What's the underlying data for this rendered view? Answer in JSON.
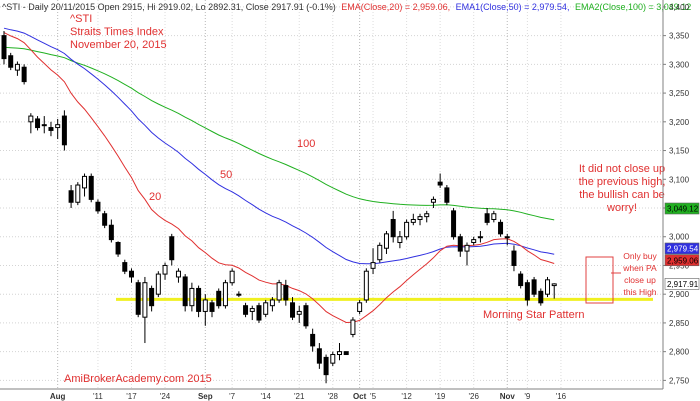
{
  "header": {
    "prefix": "^STI - Daily 20/11/2015 Open 2915, Hi 2919.02, Lo 2892.31, Close 2917.91 (-0.1%)",
    "ema20": "EMA(Close,20) = 2,959.06,",
    "ema50": "EMA1(Close,50) = 2,979.54,",
    "ema100": "EMA2(Close,100) = 3,049.12"
  },
  "title_lines": [
    "^STI",
    "Straits Times Index",
    "November 20, 2015"
  ],
  "watermark": "AmiBrokerAcademy.com 2015",
  "colors": {
    "candle_up": "#ffffff",
    "candle_down": "#000000",
    "ema20": "#e03030",
    "ema50": "#3030e0",
    "ema100": "#20b020",
    "support": "#f0f020",
    "annotation": "#e03030",
    "pattern_box": "#e04040"
  },
  "annotations": {
    "label_20": "20",
    "label_50": "50",
    "label_100": "100",
    "note_lines": [
      "It did not close up",
      "the previous high,",
      "the bullish can be",
      "worry!"
    ],
    "buy_lines": [
      "Only buy",
      "when PA",
      "close up",
      "this High"
    ],
    "pattern": "Morning Star Pattern"
  },
  "price_labels": {
    "ema100": "3,049.12",
    "ema50": "2,979.54",
    "ema20": "2,959.06",
    "close": "2,917.91"
  },
  "chart_data": {
    "type": "candlestick",
    "ylim": [
      2735,
      3412
    ],
    "yticks": [
      2750,
      2800,
      2850,
      2900,
      2950,
      3000,
      3050,
      3100,
      3150,
      3200,
      3250,
      3300,
      3350,
      3400
    ],
    "ytick_labels": [
      "2,750",
      "2,800",
      "2,850",
      "2,900",
      "2,950",
      "3,000",
      "3,050",
      "3,100",
      "3,150",
      "3,200",
      "3,250",
      "3,300",
      "3,350",
      "3,400"
    ],
    "xlabels": [
      {
        "label": "Aug",
        "index": 8,
        "bold": true
      },
      {
        "label": "'11",
        "index": 14,
        "bold": false
      },
      {
        "label": "'17",
        "index": 19,
        "bold": false
      },
      {
        "label": "'24",
        "index": 24,
        "bold": false
      },
      {
        "label": "Sep",
        "index": 30,
        "bold": true
      },
      {
        "label": "'7",
        "index": 34,
        "bold": false
      },
      {
        "label": "'14",
        "index": 39,
        "bold": false
      },
      {
        "label": "'21",
        "index": 44,
        "bold": false
      },
      {
        "label": "'28",
        "index": 49,
        "bold": false
      },
      {
        "label": "Oct",
        "index": 53,
        "bold": true
      },
      {
        "label": "'5",
        "index": 55,
        "bold": false
      },
      {
        "label": "'12",
        "index": 60,
        "bold": false
      },
      {
        "label": "'19",
        "index": 65,
        "bold": false
      },
      {
        "label": "'26",
        "index": 70,
        "bold": false
      },
      {
        "label": "Nov",
        "index": 75,
        "bold": true
      },
      {
        "label": "'9",
        "index": 78,
        "bold": false
      },
      {
        "label": "'16",
        "index": 83,
        "bold": false
      }
    ],
    "candles": [
      {
        "o": 3350,
        "h": 3358,
        "l": 3300,
        "c": 3310
      },
      {
        "o": 3315,
        "h": 3320,
        "l": 3290,
        "c": 3295
      },
      {
        "o": 3290,
        "h": 3305,
        "l": 3280,
        "c": 3300
      },
      {
        "o": 3295,
        "h": 3300,
        "l": 3265,
        "c": 3270
      },
      {
        "o": 3200,
        "h": 3215,
        "l": 3180,
        "c": 3210
      },
      {
        "o": 3205,
        "h": 3210,
        "l": 3185,
        "c": 3190
      },
      {
        "o": 3195,
        "h": 3210,
        "l": 3180,
        "c": 3195
      },
      {
        "o": 3190,
        "h": 3200,
        "l": 3175,
        "c": 3185
      },
      {
        "o": 3190,
        "h": 3205,
        "l": 3170,
        "c": 3195
      },
      {
        "o": 3210,
        "h": 3220,
        "l": 3150,
        "c": 3160
      },
      {
        "o": 3080,
        "h": 3090,
        "l": 3050,
        "c": 3060
      },
      {
        "o": 3060,
        "h": 3095,
        "l": 3055,
        "c": 3090
      },
      {
        "o": 3085,
        "h": 3110,
        "l": 3070,
        "c": 3105
      },
      {
        "o": 3105,
        "h": 3110,
        "l": 3060,
        "c": 3065
      },
      {
        "o": 3060,
        "h": 3065,
        "l": 3040,
        "c": 3045
      },
      {
        "o": 3040,
        "h": 3045,
        "l": 3015,
        "c": 3020
      },
      {
        "o": 3020,
        "h": 3030,
        "l": 2990,
        "c": 2995
      },
      {
        "o": 2990,
        "h": 2992,
        "l": 2965,
        "c": 2970
      },
      {
        "o": 2955,
        "h": 2960,
        "l": 2935,
        "c": 2940
      },
      {
        "o": 2940,
        "h": 2945,
        "l": 2920,
        "c": 2930
      },
      {
        "o": 2920,
        "h": 2925,
        "l": 2860,
        "c": 2865
      },
      {
        "o": 2860,
        "h": 2930,
        "l": 2815,
        "c": 2920
      },
      {
        "o": 2910,
        "h": 2915,
        "l": 2870,
        "c": 2880
      },
      {
        "o": 2900,
        "h": 2940,
        "l": 2895,
        "c": 2935
      },
      {
        "o": 2935,
        "h": 2955,
        "l": 2925,
        "c": 2950
      },
      {
        "o": 3000,
        "h": 3005,
        "l": 2950,
        "c": 2960
      },
      {
        "o": 2930,
        "h": 2945,
        "l": 2920,
        "c": 2940
      },
      {
        "o": 2930,
        "h": 2935,
        "l": 2870,
        "c": 2880
      },
      {
        "o": 2880,
        "h": 2920,
        "l": 2870,
        "c": 2910
      },
      {
        "o": 2910,
        "h": 2915,
        "l": 2860,
        "c": 2870
      },
      {
        "o": 2870,
        "h": 2900,
        "l": 2845,
        "c": 2890
      },
      {
        "o": 2885,
        "h": 2890,
        "l": 2860,
        "c": 2870
      },
      {
        "o": 2905,
        "h": 2910,
        "l": 2875,
        "c": 2880
      },
      {
        "o": 2880,
        "h": 2925,
        "l": 2875,
        "c": 2920
      },
      {
        "o": 2920,
        "h": 2945,
        "l": 2915,
        "c": 2940
      },
      {
        "o": 2900,
        "h": 2905,
        "l": 2895,
        "c": 2900
      },
      {
        "o": 2880,
        "h": 2885,
        "l": 2860,
        "c": 2865
      },
      {
        "o": 2870,
        "h": 2880,
        "l": 2855,
        "c": 2875
      },
      {
        "o": 2880,
        "h": 2885,
        "l": 2850,
        "c": 2855
      },
      {
        "o": 2865,
        "h": 2890,
        "l": 2860,
        "c": 2885
      },
      {
        "o": 2880,
        "h": 2895,
        "l": 2870,
        "c": 2890
      },
      {
        "o": 2890,
        "h": 2925,
        "l": 2885,
        "c": 2920
      },
      {
        "o": 2915,
        "h": 2925,
        "l": 2880,
        "c": 2890
      },
      {
        "o": 2885,
        "h": 2895,
        "l": 2855,
        "c": 2860
      },
      {
        "o": 2865,
        "h": 2880,
        "l": 2850,
        "c": 2870
      },
      {
        "o": 2880,
        "h": 2885,
        "l": 2840,
        "c": 2845
      },
      {
        "o": 2830,
        "h": 2840,
        "l": 2800,
        "c": 2810
      },
      {
        "o": 2805,
        "h": 2815,
        "l": 2770,
        "c": 2780
      },
      {
        "o": 2790,
        "h": 2795,
        "l": 2745,
        "c": 2760
      },
      {
        "o": 2780,
        "h": 2800,
        "l": 2775,
        "c": 2795
      },
      {
        "o": 2795,
        "h": 2815,
        "l": 2785,
        "c": 2800
      },
      {
        "o": 2800,
        "h": 2800,
        "l": 2795,
        "c": 2795
      },
      {
        "o": 2830,
        "h": 2860,
        "l": 2825,
        "c": 2855
      },
      {
        "o": 2870,
        "h": 2890,
        "l": 2865,
        "c": 2885
      },
      {
        "o": 2890,
        "h": 2945,
        "l": 2885,
        "c": 2940
      },
      {
        "o": 2945,
        "h": 2980,
        "l": 2935,
        "c": 2955
      },
      {
        "o": 2960,
        "h": 2990,
        "l": 2955,
        "c": 2985
      },
      {
        "o": 2980,
        "h": 3010,
        "l": 2970,
        "c": 3005
      },
      {
        "o": 3030,
        "h": 3045,
        "l": 2990,
        "c": 3000
      },
      {
        "o": 2990,
        "h": 3010,
        "l": 2980,
        "c": 3000
      },
      {
        "o": 3000,
        "h": 3030,
        "l": 2995,
        "c": 3025
      },
      {
        "o": 3025,
        "h": 3040,
        "l": 3020,
        "c": 3030
      },
      {
        "o": 3030,
        "h": 3040,
        "l": 3020,
        "c": 3035
      },
      {
        "o": 3035,
        "h": 3045,
        "l": 3025,
        "c": 3040
      },
      {
        "o": 3060,
        "h": 3070,
        "l": 3050,
        "c": 3065
      },
      {
        "o": 3095,
        "h": 3110,
        "l": 3085,
        "c": 3090
      },
      {
        "o": 3085,
        "h": 3090,
        "l": 3055,
        "c": 3060
      },
      {
        "o": 3045,
        "h": 3050,
        "l": 2995,
        "c": 3000
      },
      {
        "o": 3000,
        "h": 3005,
        "l": 2965,
        "c": 2975
      },
      {
        "o": 2975,
        "h": 2990,
        "l": 2950,
        "c": 2985
      },
      {
        "o": 2990,
        "h": 3000,
        "l": 2985,
        "c": 2995
      },
      {
        "o": 3000,
        "h": 3010,
        "l": 2990,
        "c": 3000
      },
      {
        "o": 3040,
        "h": 3050,
        "l": 3020,
        "c": 3025
      },
      {
        "o": 3030,
        "h": 3045,
        "l": 3025,
        "c": 3040
      },
      {
        "o": 3025,
        "h": 3030,
        "l": 3000,
        "c": 3005
      },
      {
        "o": 3000,
        "h": 3005,
        "l": 2985,
        "c": 3000
      },
      {
        "o": 2975,
        "h": 2985,
        "l": 2940,
        "c": 2950
      },
      {
        "o": 2935,
        "h": 2940,
        "l": 2910,
        "c": 2915
      },
      {
        "o": 2920,
        "h": 2925,
        "l": 2880,
        "c": 2890
      },
      {
        "o": 2925,
        "h": 2930,
        "l": 2895,
        "c": 2900
      },
      {
        "o": 2905,
        "h": 2910,
        "l": 2880,
        "c": 2885
      },
      {
        "o": 2900,
        "h": 2930,
        "l": 2895,
        "c": 2925
      },
      {
        "o": 2915,
        "h": 2919.02,
        "l": 2892.31,
        "c": 2917.91
      }
    ],
    "series": [
      {
        "name": "EMA(Close,20)",
        "period": 20,
        "last": 2959.06
      },
      {
        "name": "EMA1(Close,50)",
        "period": 50,
        "last": 2979.54
      },
      {
        "name": "EMA2(Close,100)",
        "period": 100,
        "last": 3049.12
      }
    ],
    "support_level": 2891
  }
}
